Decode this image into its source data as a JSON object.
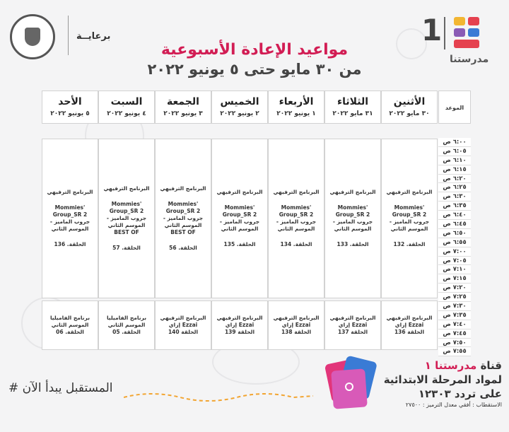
{
  "header": {
    "sponsor": "برعايــة",
    "brand_number": "1",
    "brand_name": "مدرستنا",
    "title": "مواعيد الإعادة الأسبوعية",
    "subtitle": "من ٣٠ مايو حتى ٥ يونيو ٢٠٢٢"
  },
  "table": {
    "time_label": "الموعد",
    "days": [
      {
        "day": "الأثنين",
        "date": "٣٠ مايو ٢٠٢٢"
      },
      {
        "day": "الثلاثاء",
        "date": "٣١ مايو ٢٠٢٢"
      },
      {
        "day": "الأربعاء",
        "date": "١ يونيو ٢٠٢٢"
      },
      {
        "day": "الخميس",
        "date": "٢ يونيو ٢٠٢٢"
      },
      {
        "day": "الجمعة",
        "date": "٣ يونيو ٢٠٢٢"
      },
      {
        "day": "السبت",
        "date": "٤ يونيو ٢٠٢٢"
      },
      {
        "day": "الأحد",
        "date": "٥ يونيو ٢٠٢٢"
      }
    ],
    "times": [
      "٦:٠٠ ص",
      "٦:٠٥ ص",
      "٦:١٠ ص",
      "٦:١٥ ص",
      "٦:٢٠ ص",
      "٦:٢٥ ص",
      "٦:٣٠ ص",
      "٦:٣٥ ص",
      "٦:٤٠ ص",
      "٦:٤٥ ص",
      "٦:٥٠ ص",
      "٦:٥٥ ص",
      "٧:٠٠ ص",
      "٧:٠٥ ص",
      "٧:١٠ ص",
      "٧:١٥ ص",
      "٧:٢٠ ص",
      "٧:٢٥ ص",
      "٧:٣٠ ص",
      "٧:٣٥ ص",
      "٧:٤٠ ص",
      "٧:٤٥ ص",
      "٧:٥٠ ص",
      "٧:٥٥ ص"
    ],
    "block1": [
      {
        "l1": "البرنامج الترفيهي",
        "l2": "Mommies' Group_SR 2",
        "l3": "جروب الماميز - الموسم الثاني",
        "l4": "",
        "l5": "الحلقة. 132"
      },
      {
        "l1": "البرنامج الترفيهي",
        "l2": "Mommies' Group_SR 2",
        "l3": "جروب الماميز - الموسم الثاني",
        "l4": "",
        "l5": "الحلقة. 133"
      },
      {
        "l1": "البرنامج الترفيهي",
        "l2": "Mommies' Group_SR 2",
        "l3": "جروب الماميز - الموسم الثاني",
        "l4": "",
        "l5": "الحلقة. 134"
      },
      {
        "l1": "البرنامج الترفيهي",
        "l2": "Mommies' Group_SR 2",
        "l3": "جروب الماميز - الموسم الثاني",
        "l4": "",
        "l5": "الحلقة. 135"
      },
      {
        "l1": "البرنامج الترفيهي",
        "l2": "Mommies' Group_SR 2",
        "l3": "جروب الماميز - الموسم الثاني",
        "l4": "BEST OF",
        "l5": "الحلقة. 56"
      },
      {
        "l1": "البرنامج الترفيهي",
        "l2": "Mommies' Group_SR 2",
        "l3": "جروب الماميز - الموسم الثاني",
        "l4": "BEST OF",
        "l5": "الحلقة. 57"
      },
      {
        "l1": "البرنامج الترفيهي",
        "l2": "Mommies' Group_SR 2",
        "l3": "جروب الماميز - الموسم الثاني",
        "l4": "",
        "l5": "الحلقة. 136"
      }
    ],
    "block2": [
      {
        "l1": "البرنامج الترفيهي",
        "l2": "إزاي Ezzai",
        "l3": "الحلقة 136"
      },
      {
        "l1": "البرنامج الترفيهي",
        "l2": "إزاي Ezzai",
        "l3": "الحلقة 137"
      },
      {
        "l1": "البرنامج الترفيهي",
        "l2": "إزاي Ezzai",
        "l3": "الحلقة 138"
      },
      {
        "l1": "البرنامج الترفيهي",
        "l2": "إزاي Ezzai",
        "l3": "الحلقة 139"
      },
      {
        "l1": "البرنامج الترفيهي",
        "l2": "إزاي Ezzai",
        "l3": "الحلقة 140"
      },
      {
        "l1": "برنامج الفاميليا",
        "l2": "الموسم الثاني",
        "l3": "الحلقة. 05"
      },
      {
        "l1": "برنامج الفاميليا",
        "l2": "الموسم الثاني",
        "l3": "الحلقة. 06"
      }
    ]
  },
  "footer": {
    "channel_line1a": "قناة ",
    "channel_line1b": "مدرستنا ١",
    "channel_line2": "لمواد المرحلة الابتدائية",
    "channel_line3": "على تردد ١٢٣٠٣",
    "channel_line4": "الاستقطاب : أفقي معدل الترميز : ٢٧٥٠٠",
    "slogan": "# المستقبل يبدأ الآن"
  },
  "colors": {
    "accent": "#d21d54",
    "brand_yellow": "#f2b632",
    "brand_red": "#e5414f",
    "brand_purple": "#8a5bb5",
    "brand_blue": "#3a7bd5"
  }
}
